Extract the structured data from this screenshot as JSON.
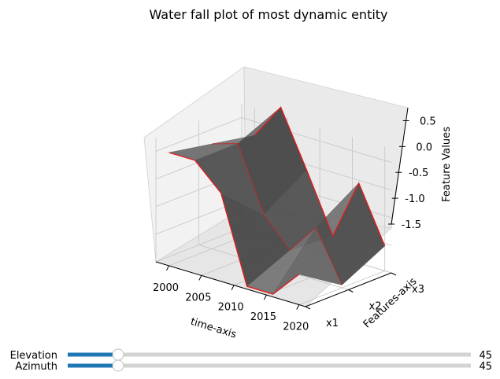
{
  "chart_data": {
    "type": "surface",
    "title": "Water fall plot of most dynamic entity",
    "xlabel": "time-axis",
    "ylabel": "Features-axis",
    "zlabel": "Feature Values",
    "x_ticks": [
      "2000",
      "2005",
      "2010",
      "2015",
      "2020"
    ],
    "y_ticks": [
      "x1",
      "x2",
      "x3"
    ],
    "z_ticks": [
      "0.5",
      "0.0",
      "-0.5",
      "-1.0",
      "-1.5"
    ],
    "xlim": [
      1998,
      2021
    ],
    "ylim": [
      "x1",
      "x3"
    ],
    "zlim": [
      -1.5,
      0.75
    ],
    "grid": true,
    "surface_color": "#6b6b6b",
    "edge_color": "#e41a1c",
    "x": [
      2000,
      2004,
      2008,
      2012,
      2016,
      2020
    ],
    "series": [
      {
        "name": "x1",
        "values": [
          0.55,
          0.55,
          0.1,
          -1.45,
          -1.45,
          -0.95
        ]
      },
      {
        "name": "x2",
        "values": [
          0.4,
          0.55,
          -0.6,
          -1.1,
          -0.55,
          -1.45
        ]
      },
      {
        "name": "x3",
        "values": [
          0.25,
          0.9,
          -0.1,
          -1.15,
          -0.05,
          -1.05
        ]
      }
    ]
  },
  "sliders": [
    {
      "label": "Elevation",
      "value": "45",
      "fraction": 0.125
    },
    {
      "label": "Azimuth",
      "value": "45",
      "fraction": 0.125
    }
  ],
  "slider_color": "#1f77b4"
}
